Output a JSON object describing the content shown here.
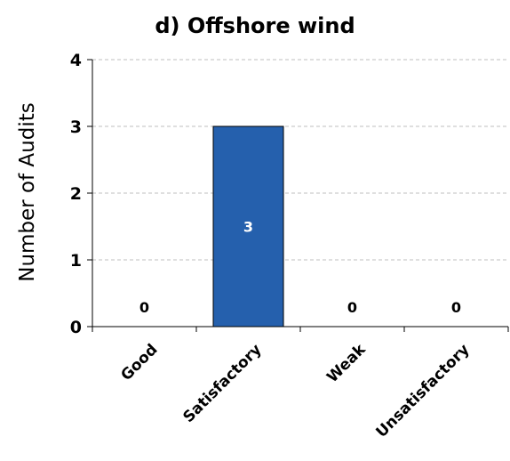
{
  "chart_data": {
    "type": "bar",
    "title": "d) Offshore wind",
    "xlabel": "",
    "ylabel": "Number of Audits",
    "categories": [
      "Good",
      "Satisfactory",
      "Weak",
      "Unsatisfactory"
    ],
    "values": [
      0,
      3,
      0,
      0
    ],
    "data_labels": [
      "0",
      "3",
      "0",
      "0"
    ],
    "yticks": [
      "0",
      "1",
      "2",
      "3",
      "4"
    ],
    "ylim": [
      0,
      4
    ],
    "grid": "horizontal dashed",
    "legend": "none",
    "colors": {
      "bar": "#2560ad",
      "bar_outline": "#000000",
      "grid": "#bfbfbf",
      "label_inside": "#ffffff",
      "label_outside": "#000000"
    }
  }
}
